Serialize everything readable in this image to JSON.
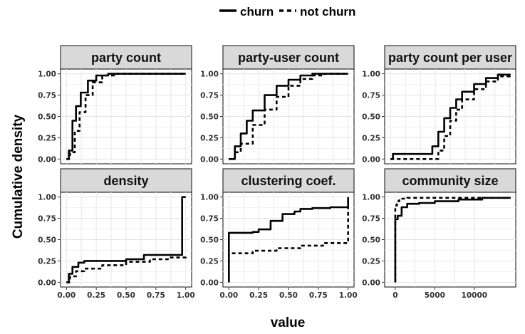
{
  "chart_data": {
    "type": "line",
    "ylabel": "Cumulative density",
    "xlabel": "value",
    "legend": {
      "placement": "top",
      "entries": [
        {
          "label": "churn",
          "linestyle": "solid"
        },
        {
          "label": "not churn",
          "linestyle": "dashed"
        }
      ]
    },
    "grid": true,
    "yticks": [
      "0.00",
      "0.25",
      "0.50",
      "0.75",
      "1.00"
    ],
    "panels": [
      {
        "title": "party count",
        "xlim": [
          0,
          1
        ],
        "xticks": [],
        "series": [
          {
            "name": "churn",
            "linestyle": "solid",
            "x": [
              0.0,
              0.02,
              0.05,
              0.08,
              0.12,
              0.18,
              0.25,
              0.35,
              0.5,
              1.0
            ],
            "y": [
              0.0,
              0.1,
              0.45,
              0.62,
              0.78,
              0.92,
              0.98,
              1.0,
              1.0,
              1.0
            ]
          },
          {
            "name": "not churn",
            "linestyle": "dashed",
            "x": [
              0.0,
              0.03,
              0.07,
              0.11,
              0.16,
              0.22,
              0.3,
              0.4,
              0.5,
              1.0
            ],
            "y": [
              0.0,
              0.08,
              0.33,
              0.55,
              0.75,
              0.9,
              0.98,
              1.0,
              1.0,
              1.0
            ]
          }
        ]
      },
      {
        "title": "party-user count",
        "xlim": [
          0,
          1
        ],
        "xticks": [],
        "series": [
          {
            "name": "churn",
            "linestyle": "solid",
            "x": [
              0.0,
              0.05,
              0.1,
              0.15,
              0.2,
              0.3,
              0.4,
              0.5,
              0.6,
              0.7,
              1.0
            ],
            "y": [
              0.0,
              0.15,
              0.3,
              0.45,
              0.57,
              0.75,
              0.86,
              0.93,
              0.98,
              1.0,
              1.0
            ]
          },
          {
            "name": "not churn",
            "linestyle": "dashed",
            "x": [
              0.0,
              0.05,
              0.1,
              0.2,
              0.3,
              0.4,
              0.5,
              0.6,
              0.7,
              0.8,
              1.0
            ],
            "y": [
              0.0,
              0.08,
              0.18,
              0.4,
              0.58,
              0.73,
              0.86,
              0.94,
              0.98,
              1.0,
              1.0
            ]
          }
        ]
      },
      {
        "title": "party count per user",
        "xlim": [
          0,
          1
        ],
        "xticks": [],
        "series": [
          {
            "name": "churn",
            "linestyle": "solid",
            "x": [
              0.0,
              0.02,
              0.3,
              0.35,
              0.4,
              0.45,
              0.5,
              0.55,
              0.6,
              0.7,
              0.8,
              0.9,
              1.0
            ],
            "y": [
              0.0,
              0.06,
              0.06,
              0.15,
              0.32,
              0.48,
              0.6,
              0.7,
              0.79,
              0.88,
              0.95,
              0.99,
              1.0
            ]
          },
          {
            "name": "not churn",
            "linestyle": "dashed",
            "x": [
              0.0,
              0.35,
              0.4,
              0.45,
              0.5,
              0.55,
              0.6,
              0.7,
              0.8,
              0.9,
              1.0
            ],
            "y": [
              0.0,
              0.0,
              0.1,
              0.27,
              0.45,
              0.58,
              0.7,
              0.82,
              0.91,
              0.97,
              1.0
            ]
          }
        ]
      },
      {
        "title": "density",
        "xlim": [
          0,
          1
        ],
        "xticks": [
          "0.00",
          "0.25",
          "0.50",
          "0.75",
          "1.00"
        ],
        "series": [
          {
            "name": "churn",
            "linestyle": "solid",
            "x": [
              0.0,
              0.02,
              0.05,
              0.1,
              0.15,
              0.3,
              0.5,
              0.65,
              0.65,
              0.97,
              0.97,
              1.0
            ],
            "y": [
              0.0,
              0.1,
              0.18,
              0.23,
              0.25,
              0.25,
              0.27,
              0.29,
              0.32,
              0.35,
              1.0,
              1.0
            ]
          },
          {
            "name": "not churn",
            "linestyle": "dashed",
            "x": [
              0.0,
              0.03,
              0.08,
              0.15,
              0.3,
              0.5,
              0.7,
              0.85,
              1.0
            ],
            "y": [
              0.0,
              0.07,
              0.13,
              0.16,
              0.2,
              0.24,
              0.27,
              0.29,
              0.3
            ]
          }
        ]
      },
      {
        "title": "clustering coef.",
        "xlim": [
          0,
          1
        ],
        "xticks": [
          "0.00",
          "0.25",
          "0.50",
          "0.75",
          "1.00"
        ],
        "series": [
          {
            "name": "churn",
            "linestyle": "solid",
            "x": [
              0.0,
              0.0,
              0.2,
              0.25,
              0.35,
              0.45,
              0.55,
              0.6,
              0.7,
              0.85,
              1.0,
              1.0
            ],
            "y": [
              0.0,
              0.58,
              0.59,
              0.62,
              0.72,
              0.8,
              0.83,
              0.86,
              0.87,
              0.88,
              0.89,
              1.0
            ]
          },
          {
            "name": "not churn",
            "linestyle": "dashed",
            "x": [
              0.0,
              0.0,
              0.2,
              0.4,
              0.6,
              0.8,
              1.0,
              1.0
            ],
            "y": [
              0.0,
              0.34,
              0.37,
              0.4,
              0.43,
              0.46,
              0.48,
              1.0
            ]
          }
        ]
      },
      {
        "title": "community size",
        "xlim": [
          -600,
          14500
        ],
        "xticks": [
          "0",
          "5000",
          "10000"
        ],
        "series": [
          {
            "name": "churn",
            "linestyle": "solid",
            "x": [
              0,
              0,
              300,
              800,
              1500,
              3000,
              5000,
              8000,
              11000,
              14500
            ],
            "y": [
              0.0,
              0.74,
              0.78,
              0.88,
              0.92,
              0.93,
              0.95,
              0.97,
              0.99,
              1.0
            ]
          },
          {
            "name": "not churn",
            "linestyle": "dashed",
            "x": [
              0,
              0,
              200,
              500,
              1500,
              14500
            ],
            "y": [
              0.0,
              0.9,
              0.95,
              0.98,
              0.99,
              1.0
            ]
          }
        ]
      }
    ]
  }
}
